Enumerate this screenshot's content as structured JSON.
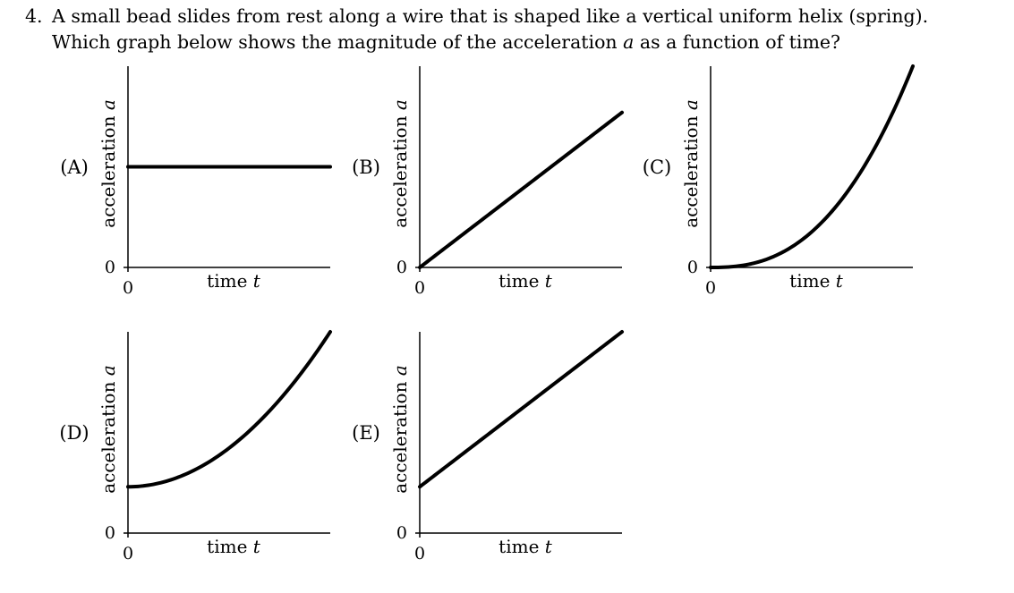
{
  "question": {
    "number": "4.",
    "line1": "A small bead slides from rest along a wire that is shaped like a vertical uniform helix (spring).",
    "line2_before": "Which graph below shows the magnitude of the acceleration ",
    "line2_var": "a",
    "line2_after": " as a function of time?"
  },
  "graph_labels": {
    "y_label": "acceleration",
    "y_var": "a",
    "x_label": "time",
    "x_var": "t",
    "zero_label": "0"
  },
  "chart_data": [
    {
      "type": "line",
      "option": "(A)",
      "shape": "constant",
      "x": [
        0,
        1
      ],
      "y": [
        0.5,
        0.5
      ],
      "xlim": [
        0,
        1
      ],
      "ylim": [
        0,
        1
      ]
    },
    {
      "type": "line",
      "option": "(B)",
      "shape": "linear",
      "x": [
        0,
        1
      ],
      "y": [
        0,
        0.77
      ],
      "xlim": [
        0,
        1
      ],
      "ylim": [
        0,
        1
      ]
    },
    {
      "type": "line",
      "option": "(C)",
      "shape": "power",
      "start": 0,
      "end": 1.0,
      "exponent": 2.5,
      "xlim": [
        0,
        1
      ],
      "ylim": [
        0,
        1
      ]
    },
    {
      "type": "line",
      "option": "(D)",
      "shape": "quadratic-offset",
      "start": 0.23,
      "end": 1.0,
      "exponent": 2,
      "xlim": [
        0,
        1
      ],
      "ylim": [
        0,
        1
      ]
    },
    {
      "type": "line",
      "option": "(E)",
      "shape": "linear-offset",
      "x": [
        0,
        1
      ],
      "y": [
        0.23,
        1.0
      ],
      "xlim": [
        0,
        1
      ],
      "ylim": [
        0,
        1
      ]
    }
  ]
}
